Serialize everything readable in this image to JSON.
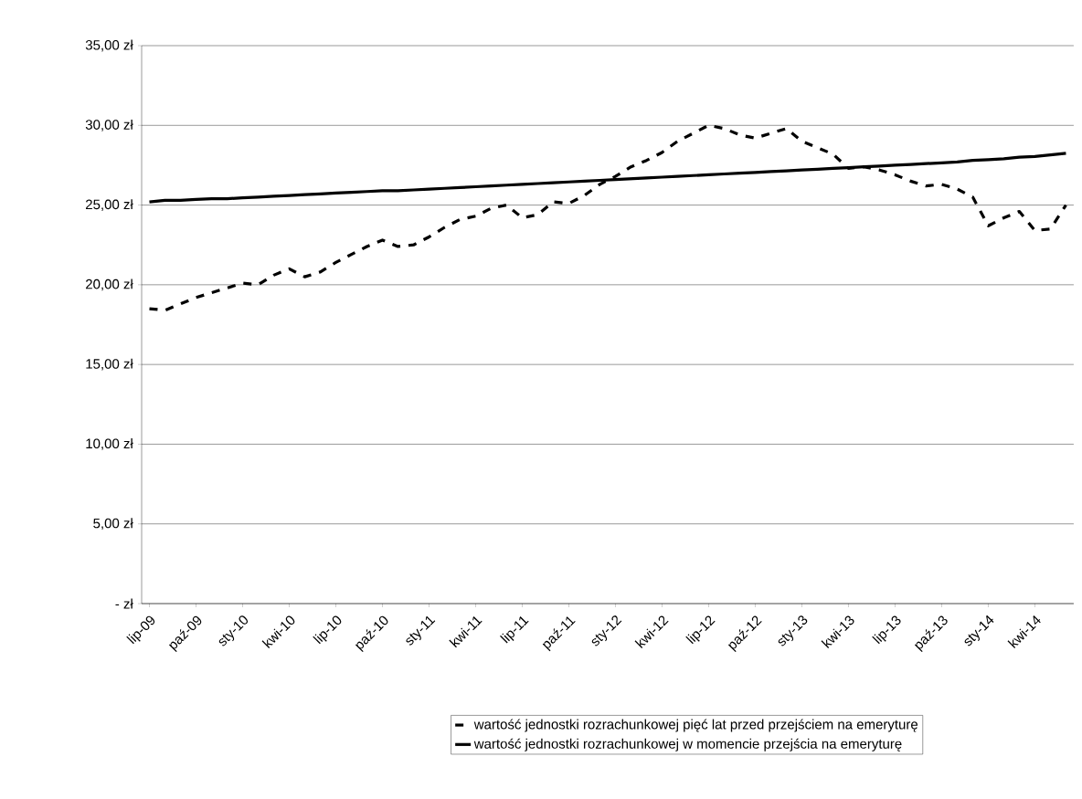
{
  "chart_data": {
    "type": "line",
    "categories": [
      "lip-09",
      null,
      null,
      "paź-09",
      null,
      null,
      "sty-10",
      null,
      null,
      "kwi-10",
      null,
      null,
      "lip-10",
      null,
      null,
      "paź-10",
      null,
      null,
      "sty-11",
      null,
      null,
      "kwi-11",
      null,
      null,
      "lip-11",
      null,
      null,
      "paź-11",
      null,
      null,
      "sty-12",
      null,
      null,
      "kwi-12",
      null,
      null,
      "lip-12",
      null,
      null,
      "paź-12",
      null,
      null,
      "sty-13",
      null,
      null,
      "kwi-13",
      null,
      null,
      "lip-13",
      null,
      null,
      "paź-13",
      null,
      null,
      "sty-14",
      null,
      null,
      "kwi-14",
      null,
      null
    ],
    "series": [
      {
        "name": "wartość jednostki rozrachunkowej pięć lat przed przejściem na emeryturę",
        "color": "#000000",
        "line_style": "dashed",
        "values": [
          18.5,
          18.4,
          18.8,
          19.2,
          19.5,
          19.8,
          20.1,
          20.0,
          20.6,
          21.0,
          20.5,
          20.8,
          21.4,
          21.9,
          22.4,
          22.8,
          22.4,
          22.5,
          23.0,
          23.6,
          24.1,
          24.3,
          24.8,
          25.0,
          24.2,
          24.4,
          25.2,
          25.1,
          25.6,
          26.3,
          26.8,
          27.4,
          27.8,
          28.3,
          29.0,
          29.5,
          30.0,
          29.8,
          29.4,
          29.2,
          29.5,
          29.8,
          29.0,
          28.6,
          28.2,
          27.3,
          27.4,
          27.2,
          26.9,
          26.5,
          26.2,
          26.3,
          26.0,
          25.5,
          23.7,
          24.2,
          24.6,
          23.4,
          23.5,
          25.0
        ]
      },
      {
        "name": "wartość jednostki rozrachunkowej w momencie przejścia na emeryturę",
        "color": "#000000",
        "line_style": "solid",
        "values": [
          25.2,
          25.3,
          25.3,
          25.35,
          25.4,
          25.4,
          25.45,
          25.5,
          25.55,
          25.6,
          25.65,
          25.7,
          25.75,
          25.8,
          25.85,
          25.9,
          25.9,
          25.95,
          26.0,
          26.05,
          26.1,
          26.15,
          26.2,
          26.25,
          26.3,
          26.35,
          26.4,
          26.45,
          26.5,
          26.55,
          26.6,
          26.65,
          26.7,
          26.75,
          26.8,
          26.85,
          26.9,
          26.95,
          27.0,
          27.05,
          27.1,
          27.15,
          27.2,
          27.25,
          27.3,
          27.35,
          27.4,
          27.45,
          27.5,
          27.55,
          27.6,
          27.65,
          27.7,
          27.8,
          27.85,
          27.9,
          28.0,
          28.05,
          28.15,
          28.25
        ]
      }
    ],
    "ylim": [
      0,
      35
    ],
    "yticks": [
      {
        "value": 0,
        "label": "- zł"
      },
      {
        "value": 5,
        "label": "5,00 zł"
      },
      {
        "value": 10,
        "label": "10,00 zł"
      },
      {
        "value": 15,
        "label": "15,00 zł"
      },
      {
        "value": 20,
        "label": "20,00 zł"
      },
      {
        "value": 25,
        "label": "25,00 zł"
      },
      {
        "value": 30,
        "label": "30,00 zł"
      },
      {
        "value": 35,
        "label": "35,00 zł"
      }
    ],
    "grid": "y",
    "legend": "bottom",
    "marker": "none"
  }
}
